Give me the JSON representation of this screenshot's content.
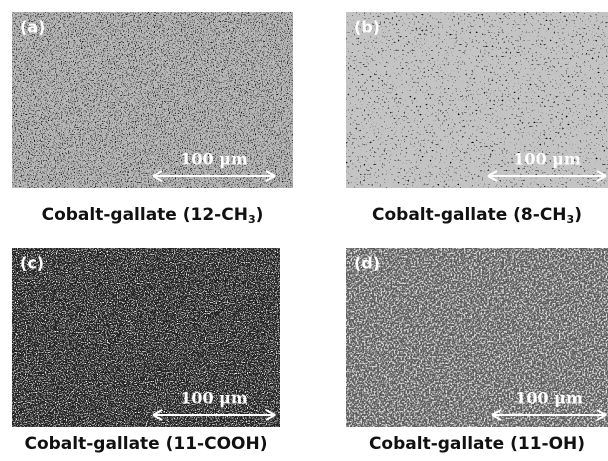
{
  "panels": [
    {
      "label": "(a)",
      "scale": "100 μm",
      "caption": {
        "text": "Cobalt-gallate (12-CH",
        "sub": "3",
        "tail": ")"
      }
    },
    {
      "label": "(b)",
      "scale": "100 μm",
      "caption": {
        "text": "Cobalt-gallate (8-CH",
        "sub": "3",
        "tail": ")"
      }
    },
    {
      "label": "(c)",
      "scale": "100 μm",
      "caption": {
        "text": "Cobalt-gallate (11-COOH)"
      }
    },
    {
      "label": "(d)",
      "scale": "100 μm",
      "caption": {
        "text": "Cobalt-gallate (11-OH)"
      }
    }
  ]
}
